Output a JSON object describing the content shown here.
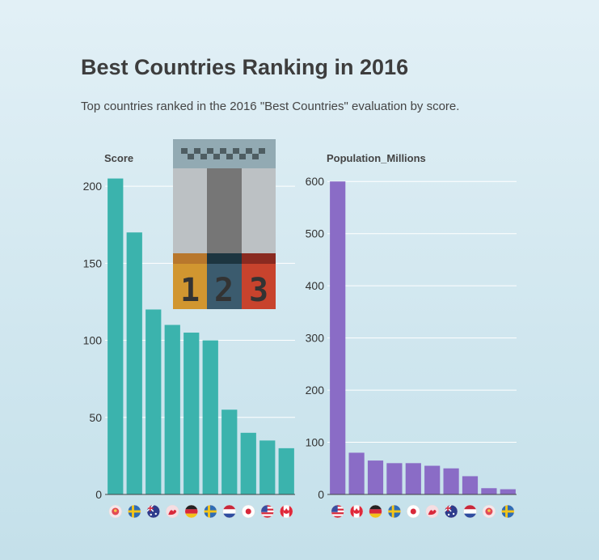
{
  "header": {
    "title": "Best Countries Ranking in 2016",
    "subtitle": "Top countries ranked in the 2016 \"Best Countries\" evaluation by score."
  },
  "chart_data": [
    {
      "type": "bar",
      "title": "Score",
      "categories": [
        "Switzerland",
        "Sweden",
        "Australia",
        "Denmark",
        "Germany",
        "Sweden",
        "Netherlands",
        "Japan",
        "United States",
        "Canada"
      ],
      "category_icons": [
        "flag-switzerland-icon",
        "flag-sweden-icon",
        "flag-australia-icon",
        "flag-denmark-icon",
        "flag-germany-icon",
        "flag-sweden-icon",
        "flag-netherlands-icon",
        "flag-japan-icon",
        "flag-us-icon",
        "flag-canada-icon"
      ],
      "values": [
        205,
        170,
        120,
        110,
        105,
        100,
        55,
        40,
        35,
        30
      ],
      "ylim": [
        0,
        220
      ],
      "yticks": [
        0,
        50,
        100,
        150,
        200
      ],
      "color": "#3bb3ad",
      "grid": true
    },
    {
      "type": "bar",
      "title": "Population_Millions",
      "categories": [
        "United States",
        "Canada",
        "Germany",
        "Sweden",
        "Japan",
        "Denmark",
        "Australia",
        "Netherlands",
        "Switzerland",
        "Sweden"
      ],
      "category_icons": [
        "flag-us-icon",
        "flag-canada-icon",
        "flag-germany-icon",
        "flag-sweden-icon",
        "flag-japan-icon",
        "flag-denmark-icon",
        "flag-australia-icon",
        "flag-netherlands-icon",
        "flag-switzerland-icon",
        "flag-sweden-icon"
      ],
      "values": [
        600,
        80,
        65,
        60,
        60,
        55,
        50,
        35,
        12,
        10
      ],
      "ylim": [
        0,
        650
      ],
      "yticks": [
        0,
        100,
        200,
        300,
        400,
        500,
        600
      ],
      "color": "#8a6cc6",
      "grid": true
    }
  ],
  "decoration": {
    "icon": "podium-1-2-3-icon",
    "podium_labels": [
      "1",
      "2",
      "3"
    ]
  }
}
